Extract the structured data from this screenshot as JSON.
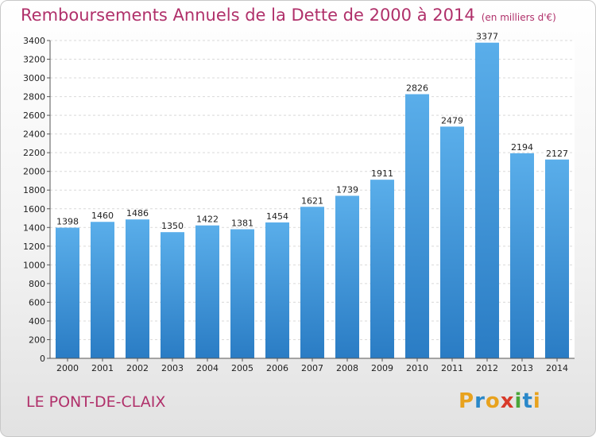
{
  "chart_data": {
    "type": "bar",
    "title": "Remboursements Annuels de la Dette de 2000 à 2014",
    "unit_note": "(en milliers d'€)",
    "categories": [
      "2000",
      "2001",
      "2002",
      "2003",
      "2004",
      "2005",
      "2006",
      "2007",
      "2008",
      "2009",
      "2010",
      "2011",
      "2012",
      "2013",
      "2014"
    ],
    "values": [
      1398,
      1460,
      1486,
      1350,
      1422,
      1381,
      1454,
      1621,
      1739,
      1911,
      2826,
      2479,
      3377,
      2194,
      2127
    ],
    "ylim": [
      0,
      3400
    ],
    "yticks": [
      0,
      200,
      400,
      600,
      800,
      1000,
      1200,
      1400,
      1600,
      1800,
      2000,
      2200,
      2400,
      2600,
      2800,
      3000,
      3200,
      3400
    ],
    "grid": true,
    "bar_color": "#3a8fd8",
    "title_color": "#b0306a"
  },
  "place": "LE PONT-DE-CLAIX",
  "logo": {
    "text": "Proxiti",
    "letters": [
      {
        "ch": "P",
        "color": "#e8a21e"
      },
      {
        "ch": "r",
        "color": "#2a88c9"
      },
      {
        "ch": "o",
        "color": "#e8a21e"
      },
      {
        "ch": "x",
        "color": "#d83a2a"
      },
      {
        "ch": "i",
        "color": "#4aa63a"
      },
      {
        "ch": "t",
        "color": "#2a88c9"
      },
      {
        "ch": "i",
        "color": "#e8a21e"
      }
    ]
  }
}
